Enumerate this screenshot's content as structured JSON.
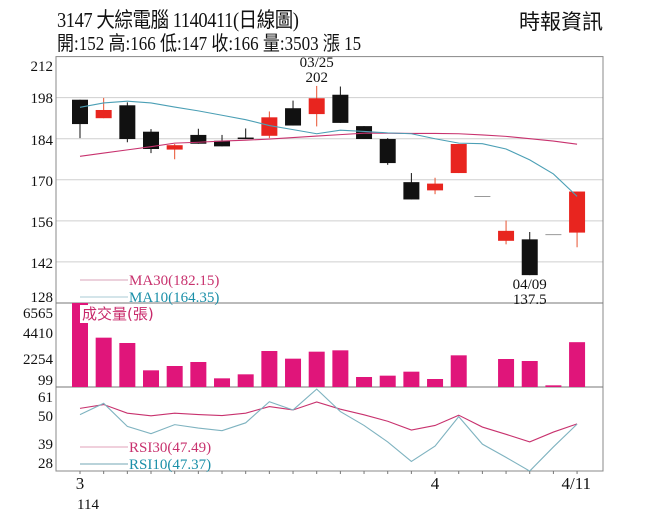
{
  "header": {
    "title": "3147  大綜電腦 1140411(日線圖)",
    "summary": "開:152 高:166 低:147 收:166 量:3503 漲 15",
    "source": "時報資訊"
  },
  "colors": {
    "up": "#e8251f",
    "down": "#111111",
    "ma30": "#c8326e",
    "ma10": "#4b9fb5",
    "volume": "#e0157a",
    "rsi30": "#c8326e",
    "rsi10": "#7fb3c0",
    "grid": "#cfcfcf"
  },
  "chart_data": [
    {
      "type": "candlestick",
      "panel": "price",
      "ylim": [
        128,
        212
      ],
      "yticks": [
        212,
        198,
        184,
        170,
        156,
        142,
        128
      ],
      "grid": true,
      "candles": [
        {
          "o": 197.3,
          "h": 197.3,
          "l": 184.2,
          "c": 189
        },
        {
          "o": 191,
          "h": 197.9,
          "l": 191,
          "c": 193.8
        },
        {
          "o": 195.4,
          "h": 196.4,
          "l": 182.8,
          "c": 183.9
        },
        {
          "o": 186.4,
          "h": 187.3,
          "l": 179.1,
          "c": 180.5
        },
        {
          "o": 180.3,
          "h": 182.2,
          "l": 177,
          "c": 181.8
        },
        {
          "o": 185.3,
          "h": 187.4,
          "l": 182.3,
          "c": 182.3
        },
        {
          "o": 183.3,
          "h": 185.3,
          "l": 181.4,
          "c": 181.4
        },
        {
          "o": 184.4,
          "h": 187.5,
          "l": 183.9,
          "c": 183.9
        },
        {
          "o": 185,
          "h": 193.3,
          "l": 184.2,
          "c": 191.3
        },
        {
          "o": 194.4,
          "h": 197,
          "l": 188.5,
          "c": 188.5
        },
        {
          "o": 192.4,
          "h": 202,
          "l": 188.2,
          "c": 197.8
        },
        {
          "o": 199,
          "h": 201.8,
          "l": 189.4,
          "c": 189.4
        },
        {
          "o": 188.3,
          "h": 188.3,
          "l": 183.9,
          "c": 183.9
        },
        {
          "o": 183.9,
          "h": 184.2,
          "l": 175.1,
          "c": 175.7
        },
        {
          "o": 169.2,
          "h": 172.3,
          "l": 163.3,
          "c": 163.3
        },
        {
          "o": 166.4,
          "h": 170.7,
          "l": 165.1,
          "c": 168.7
        },
        {
          "o": 172.3,
          "h": 182.2,
          "l": 172.3,
          "c": 182.2
        },
        {
          "o": 164.3,
          "h": 164.3,
          "l": 164.3,
          "c": 164.3
        },
        {
          "o": 149.2,
          "h": 156.1,
          "l": 148,
          "c": 152.6
        },
        {
          "o": 149.7,
          "h": 152.2,
          "l": 137.5,
          "c": 137.5
        },
        {
          "o": 151.3,
          "h": 151.3,
          "l": 151.3,
          "c": 151.3
        },
        {
          "o": 152,
          "h": 166,
          "l": 147,
          "c": 166
        }
      ],
      "series": [
        {
          "name": "MA30(182.15)",
          "values": [
            178,
            179.1,
            180.2,
            181.3,
            182.5,
            182.8,
            183.2,
            183.5,
            183.9,
            184.4,
            184.9,
            185.4,
            185.9,
            185.9,
            185.8,
            185.8,
            185.7,
            185.3,
            184.8,
            184,
            183.2,
            182.15
          ]
        },
        {
          "name": "MA10(164.35)",
          "values": [
            194.7,
            196.2,
            196.8,
            196.2,
            194.8,
            193.5,
            192,
            190.5,
            188.5,
            187.1,
            185.7,
            186.9,
            186.5,
            186,
            185.7,
            184,
            182.5,
            182.3,
            180.5,
            176.8,
            172,
            164.35
          ]
        }
      ],
      "annotations": [
        {
          "index": 10,
          "date": "03/25",
          "value": "202",
          "position": "above"
        },
        {
          "index": 19,
          "date": "04/09",
          "value": "137.5",
          "position": "below"
        }
      ]
    },
    {
      "type": "bar",
      "panel": "volume",
      "label": "成交量(張)",
      "yticks": [
        6565,
        4410,
        2254,
        99
      ],
      "values": [
        6565,
        3856,
        3439,
        1303,
        1641,
        1954,
        677,
        990,
        2814,
        2214,
        2761,
        2866,
        782,
        886,
        1198,
        625,
        2475,
        0,
        2188,
        2032,
        130,
        3503
      ]
    },
    {
      "type": "line",
      "panel": "rsi",
      "yticks": [
        61,
        50,
        39,
        28
      ],
      "series": [
        {
          "name": "RSI30(47.49)",
          "values": [
            55.2,
            57.1,
            52.8,
            51.5,
            52.8,
            52.1,
            51.6,
            52.8,
            56.1,
            54.4,
            58.4,
            54.8,
            52,
            48.8,
            44.4,
            46.7,
            51.8,
            45.9,
            42.3,
            38.5,
            43.4,
            47.49
          ]
        },
        {
          "name": "RSI10(47.37)",
          "values": [
            52.1,
            57.7,
            46.2,
            42.6,
            47.1,
            45.4,
            44.1,
            48,
            58.5,
            54.4,
            64.8,
            53.6,
            46.7,
            38.5,
            28.8,
            36.4,
            51.1,
            37.4,
            30.8,
            24,
            36,
            47.37
          ]
        }
      ]
    }
  ],
  "xaxis": {
    "labels": [
      {
        "index": 0,
        "text": "3"
      },
      {
        "index": 15,
        "text": "4"
      },
      {
        "index": 21,
        "text": "4/11"
      }
    ],
    "year": "114"
  }
}
